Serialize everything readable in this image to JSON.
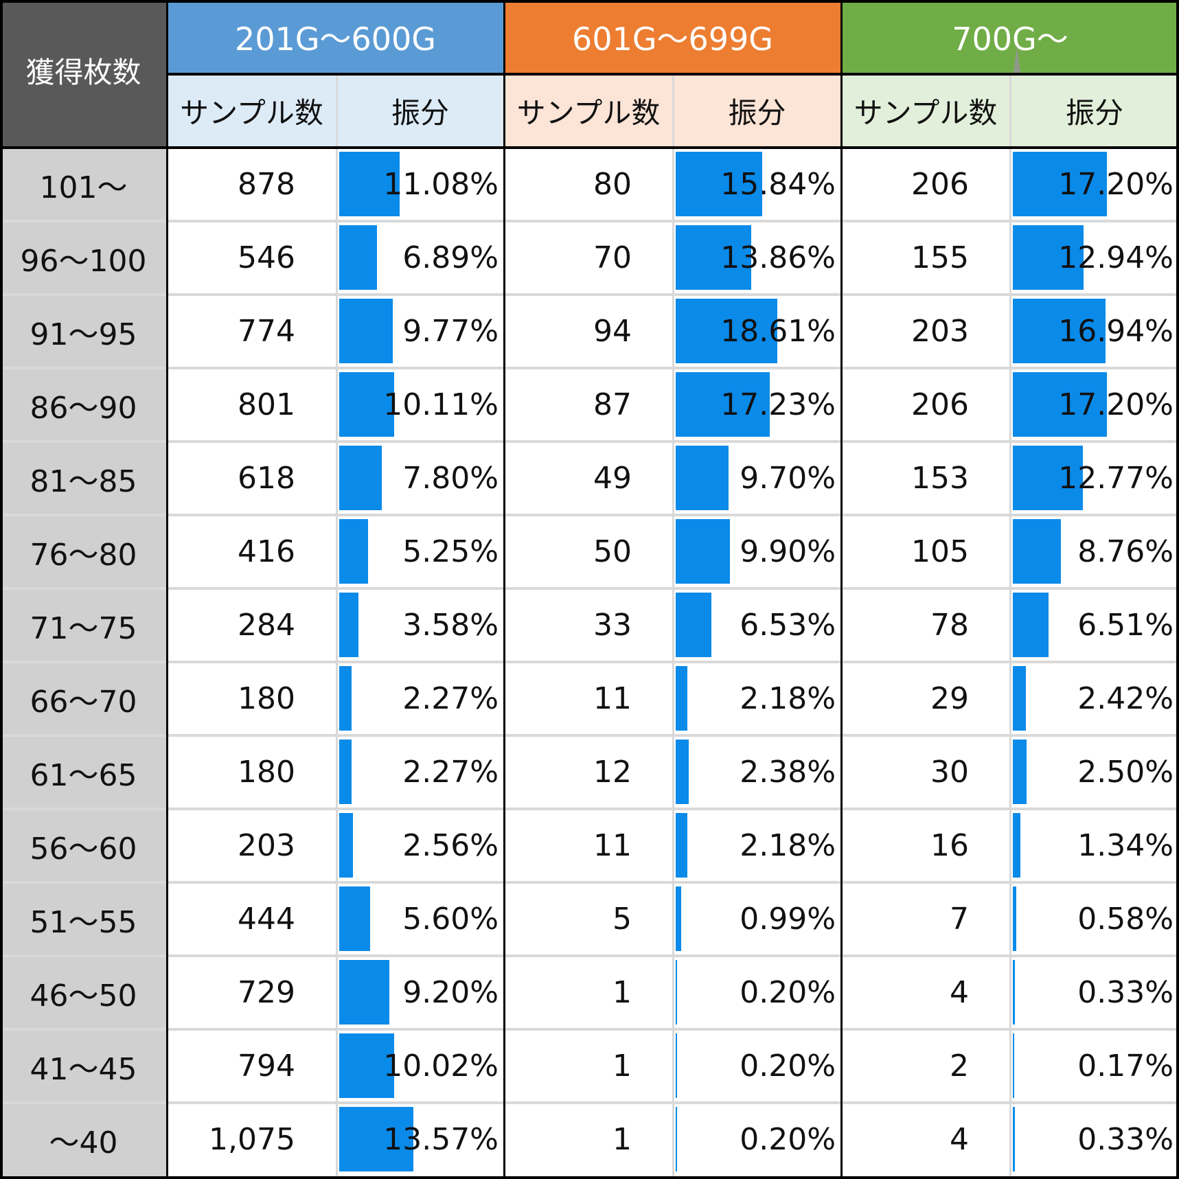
{
  "table": {
    "corner_header": "獲得枚数",
    "groups": [
      {
        "label": "201G〜600G",
        "header_color": "#5b9bd5",
        "sub_color": "#ddebf7"
      },
      {
        "label": "601G〜699G",
        "header_color": "#ed7d31",
        "sub_color": "#fce4d6"
      },
      {
        "label": "700G〜",
        "header_color": "#70ad47",
        "sub_color": "#e2efda"
      }
    ],
    "sub_headers": {
      "samples": "サンプル数",
      "share": "振分"
    },
    "bar_color": "#0a8ae9",
    "rows": [
      {
        "label": "101〜",
        "g": [
          {
            "n": "878",
            "p": "11.08%"
          },
          {
            "n": "80",
            "p": "15.84%"
          },
          {
            "n": "206",
            "p": "17.20%"
          }
        ]
      },
      {
        "label": "96〜100",
        "g": [
          {
            "n": "546",
            "p": "6.89%"
          },
          {
            "n": "70",
            "p": "13.86%"
          },
          {
            "n": "155",
            "p": "12.94%"
          }
        ]
      },
      {
        "label": "91〜95",
        "g": [
          {
            "n": "774",
            "p": "9.77%"
          },
          {
            "n": "94",
            "p": "18.61%"
          },
          {
            "n": "203",
            "p": "16.94%"
          }
        ]
      },
      {
        "label": "86〜90",
        "g": [
          {
            "n": "801",
            "p": "10.11%"
          },
          {
            "n": "87",
            "p": "17.23%"
          },
          {
            "n": "206",
            "p": "17.20%"
          }
        ]
      },
      {
        "label": "81〜85",
        "g": [
          {
            "n": "618",
            "p": "7.80%"
          },
          {
            "n": "49",
            "p": "9.70%"
          },
          {
            "n": "153",
            "p": "12.77%"
          }
        ]
      },
      {
        "label": "76〜80",
        "g": [
          {
            "n": "416",
            "p": "5.25%"
          },
          {
            "n": "50",
            "p": "9.90%"
          },
          {
            "n": "105",
            "p": "8.76%"
          }
        ]
      },
      {
        "label": "71〜75",
        "g": [
          {
            "n": "284",
            "p": "3.58%"
          },
          {
            "n": "33",
            "p": "6.53%"
          },
          {
            "n": "78",
            "p": "6.51%"
          }
        ]
      },
      {
        "label": "66〜70",
        "g": [
          {
            "n": "180",
            "p": "2.27%"
          },
          {
            "n": "11",
            "p": "2.18%"
          },
          {
            "n": "29",
            "p": "2.42%"
          }
        ]
      },
      {
        "label": "61〜65",
        "g": [
          {
            "n": "180",
            "p": "2.27%"
          },
          {
            "n": "12",
            "p": "2.38%"
          },
          {
            "n": "30",
            "p": "2.50%"
          }
        ]
      },
      {
        "label": "56〜60",
        "g": [
          {
            "n": "203",
            "p": "2.56%"
          },
          {
            "n": "11",
            "p": "2.18%"
          },
          {
            "n": "16",
            "p": "1.34%"
          }
        ]
      },
      {
        "label": "51〜55",
        "g": [
          {
            "n": "444",
            "p": "5.60%"
          },
          {
            "n": "5",
            "p": "0.99%"
          },
          {
            "n": "7",
            "p": "0.58%"
          }
        ]
      },
      {
        "label": "46〜50",
        "g": [
          {
            "n": "729",
            "p": "9.20%"
          },
          {
            "n": "1",
            "p": "0.20%"
          },
          {
            "n": "4",
            "p": "0.33%"
          }
        ]
      },
      {
        "label": "41〜45",
        "g": [
          {
            "n": "794",
            "p": "10.02%"
          },
          {
            "n": "1",
            "p": "0.20%"
          },
          {
            "n": "2",
            "p": "0.17%"
          }
        ]
      },
      {
        "label": "〜40",
        "g": [
          {
            "n": "1,075",
            "p": "13.57%"
          },
          {
            "n": "1",
            "p": "0.20%"
          },
          {
            "n": "4",
            "p": "0.33%"
          }
        ]
      }
    ]
  },
  "chart_data": {
    "type": "table",
    "title": "",
    "row_header": "獲得枚数",
    "categories": [
      "101〜",
      "96〜100",
      "91〜95",
      "86〜90",
      "81〜85",
      "76〜80",
      "71〜75",
      "66〜70",
      "61〜65",
      "56〜60",
      "51〜55",
      "46〜50",
      "41〜45",
      "〜40"
    ],
    "series": [
      {
        "name": "201G〜600G サンプル数",
        "values": [
          878,
          546,
          774,
          801,
          618,
          416,
          284,
          180,
          180,
          203,
          444,
          729,
          794,
          1075
        ]
      },
      {
        "name": "201G〜600G 振分 (%)",
        "values": [
          11.08,
          6.89,
          9.77,
          10.11,
          7.8,
          5.25,
          3.58,
          2.27,
          2.27,
          2.56,
          5.6,
          9.2,
          10.02,
          13.57
        ]
      },
      {
        "name": "601G〜699G サンプル数",
        "values": [
          80,
          70,
          94,
          87,
          49,
          50,
          33,
          11,
          12,
          11,
          5,
          1,
          1,
          1
        ]
      },
      {
        "name": "601G〜699G 振分 (%)",
        "values": [
          15.84,
          13.86,
          18.61,
          17.23,
          9.7,
          9.9,
          6.53,
          2.18,
          2.38,
          2.18,
          0.99,
          0.2,
          0.2,
          0.2
        ]
      },
      {
        "name": "700G〜 サンプル数",
        "values": [
          206,
          155,
          203,
          206,
          153,
          105,
          78,
          29,
          30,
          16,
          7,
          4,
          2,
          4
        ]
      },
      {
        "name": "700G〜 振分 (%)",
        "values": [
          17.2,
          12.94,
          16.94,
          17.2,
          12.77,
          8.76,
          6.51,
          2.42,
          2.5,
          1.34,
          0.58,
          0.33,
          0.17,
          0.33
        ]
      }
    ],
    "notes": "振分 columns include in-cell data bars proportional to percentage (same absolute scale across groups)"
  }
}
